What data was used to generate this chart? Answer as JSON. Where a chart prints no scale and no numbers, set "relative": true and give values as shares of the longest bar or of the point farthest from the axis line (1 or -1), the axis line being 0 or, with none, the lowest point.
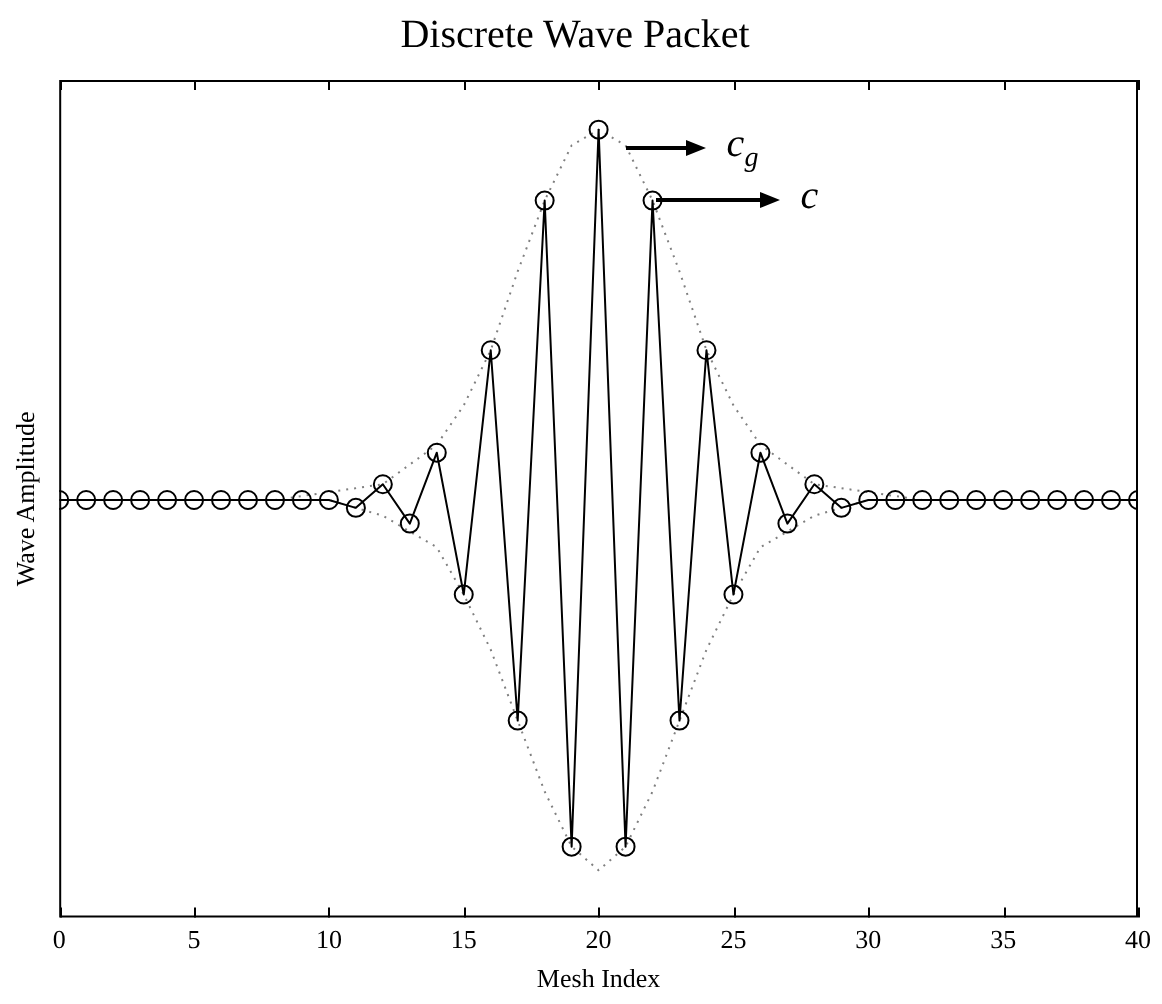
{
  "chart_data": {
    "type": "line",
    "title": "Discrete Wave Packet",
    "xlabel": "Mesh Index",
    "ylabel": "Wave Amplitude",
    "relative": true,
    "xlim": [
      0,
      40
    ],
    "xticks": [
      0,
      5,
      10,
      15,
      20,
      25,
      30,
      35,
      40
    ],
    "grid": false,
    "legend": false,
    "marker": "circle",
    "line_style": "solid",
    "series": [
      {
        "color": "#000000",
        "x": [
          0,
          1,
          2,
          3,
          4,
          5,
          6,
          7,
          8,
          9,
          10,
          11,
          12,
          13,
          14,
          15,
          16,
          17,
          18,
          19,
          20,
          21,
          22,
          23,
          24,
          25,
          26,
          27,
          28,
          29,
          30,
          31,
          32,
          33,
          34,
          35,
          36,
          37,
          38,
          39,
          40
        ],
        "values": [
          0.53,
          0.53,
          0.53,
          0.53,
          0.53,
          0.53,
          0.53,
          0.53,
          0.53,
          0.53,
          0.53,
          0.52,
          0.55,
          0.5,
          0.59,
          0.41,
          0.72,
          0.25,
          0.91,
          0.09,
          1,
          0.09,
          0.91,
          0.25,
          0.72,
          0.41,
          0.59,
          0.5,
          0.55,
          0.52,
          0.53,
          0.53,
          0.53,
          0.53,
          0.53,
          0.53,
          0.53,
          0.53,
          0.53,
          0.53,
          0.53
        ]
      },
      {
        "color": "#808080",
        "marker": "none",
        "line_style": "dotted",
        "x": [
          8,
          10,
          12,
          14,
          15,
          16,
          17,
          18,
          19,
          20,
          21,
          22,
          23,
          24,
          25,
          26,
          28,
          30,
          32
        ],
        "values": [
          0.53,
          0.54,
          0.55,
          0.6,
          0.65,
          0.72,
          0.82,
          0.91,
          0.98,
          1,
          0.98,
          0.91,
          0.82,
          0.72,
          0.65,
          0.6,
          0.55,
          0.54,
          0.53
        ]
      },
      {
        "color": "#808080",
        "marker": "none",
        "line_style": "dotted",
        "x": [
          8,
          10,
          12,
          14,
          15,
          16,
          17,
          18,
          19,
          20,
          21,
          22,
          23,
          24,
          25,
          26,
          28,
          30,
          32
        ],
        "values": [
          0.53,
          0.53,
          0.51,
          0.47,
          0.41,
          0.34,
          0.25,
          0.16,
          0.09,
          0.06,
          0.09,
          0.16,
          0.25,
          0.34,
          0.41,
          0.47,
          0.51,
          0.53,
          0.53
        ]
      }
    ],
    "annotations": [
      "c$_{g}$",
      "c"
    ]
  }
}
